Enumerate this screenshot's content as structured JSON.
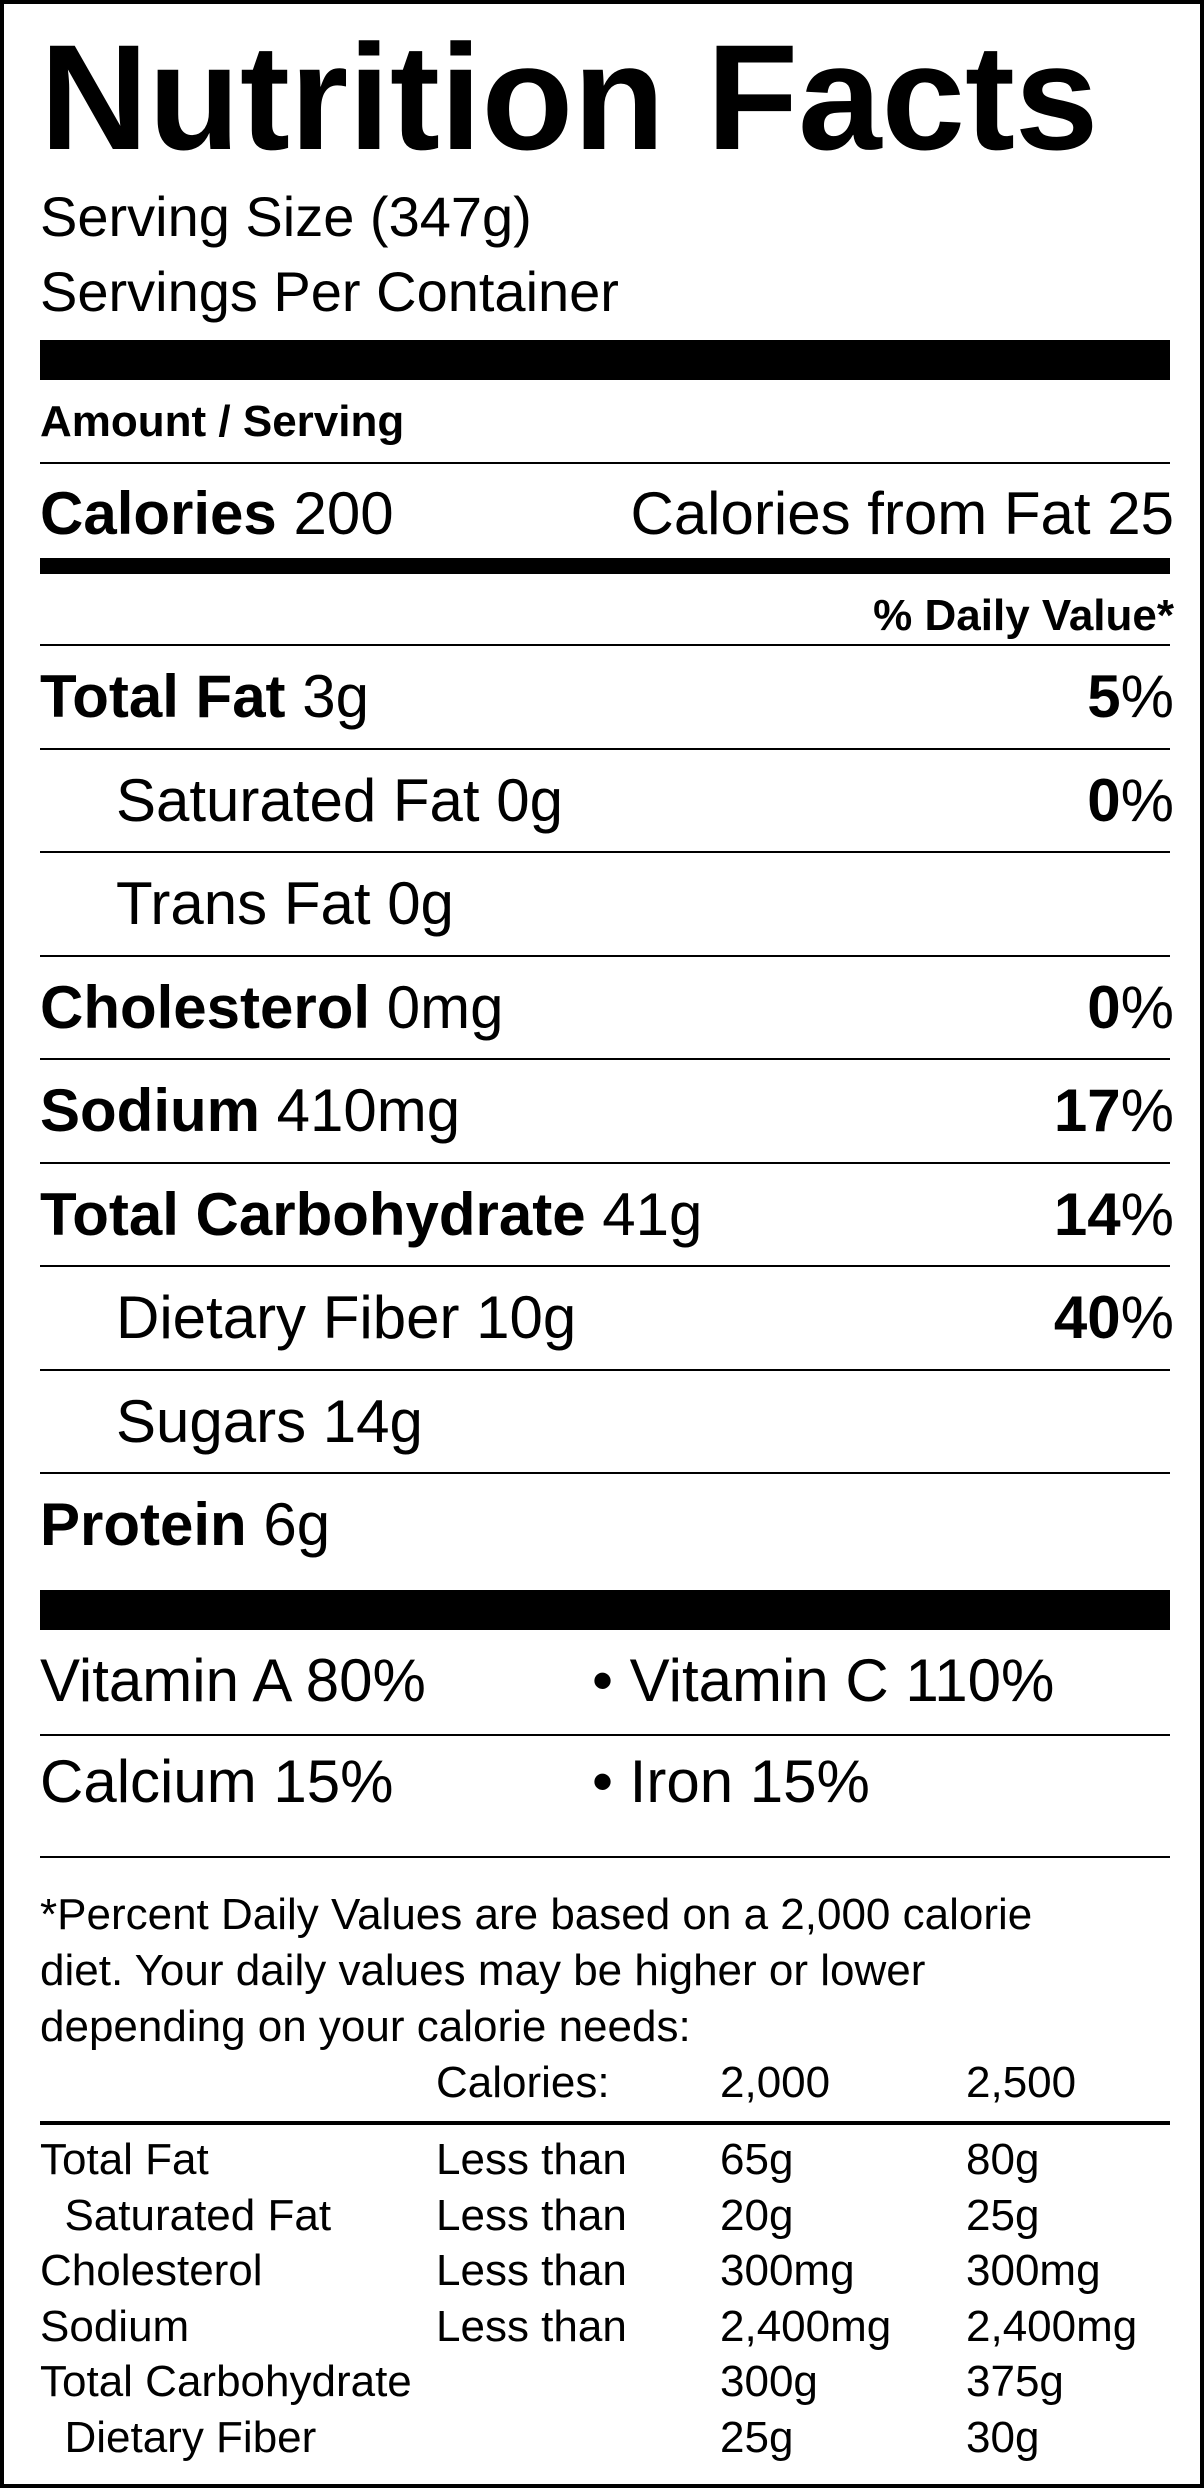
{
  "title": "Nutrition Facts",
  "serving_size": "Serving Size (347g)",
  "servings_per_container": "Servings Per Container",
  "amount_per_serving": "Amount / Serving",
  "calories": {
    "label": "Calories",
    "value": "200"
  },
  "calories_from_fat": "Calories from Fat 25",
  "daily_value_header": "% Daily Value*",
  "nutrients": [
    {
      "name": "Total Fat",
      "amount": "3g",
      "dv": "5%",
      "bold": true,
      "indent": false
    },
    {
      "name": "Saturated Fat",
      "amount": "0g",
      "dv": "0%",
      "bold": false,
      "indent": true
    },
    {
      "name": "Trans Fat",
      "amount": "0g",
      "dv": "",
      "bold": false,
      "indent": true
    },
    {
      "name": "Cholesterol",
      "amount": "0mg",
      "dv": "0%",
      "bold": true,
      "indent": false
    },
    {
      "name": "Sodium",
      "amount": "410mg",
      "dv": "17%",
      "bold": true,
      "indent": false
    },
    {
      "name": "Total Carbohydrate",
      "amount": "41g",
      "dv": "14%",
      "bold": true,
      "indent": false
    },
    {
      "name": "Dietary Fiber",
      "amount": "10g",
      "dv": "40%",
      "bold": false,
      "indent": true
    },
    {
      "name": "Sugars",
      "amount": "14g",
      "dv": "",
      "bold": false,
      "indent": true
    },
    {
      "name": "Protein",
      "amount": "6g",
      "dv": "",
      "bold": true,
      "indent": false
    }
  ],
  "vitamins": {
    "vitamin_a": "Vitamin A 80%",
    "vitamin_c": "• Vitamin C 110%",
    "calcium": "Calcium 15%",
    "iron": "• Iron 15%"
  },
  "footnote": {
    "line1": "*Percent Daily Values are based on a 2,000 calorie",
    "line2": "diet. Your daily values may be higher or lower",
    "line3": "depending on your calorie needs:",
    "calories_label": "Calories:",
    "cal_2000": "2,000",
    "cal_2500": "2,500",
    "rows": [
      {
        "name": "Total Fat",
        "qual": "Less than",
        "v2000": "65g",
        "v2500": "80g"
      },
      {
        "name": "  Saturated Fat",
        "qual": "Less than",
        "v2000": "20g",
        "v2500": "25g"
      },
      {
        "name": "Cholesterol",
        "qual": "Less than",
        "v2000": "300mg",
        "v2500": "300mg"
      },
      {
        "name": "Sodium",
        "qual": "Less than",
        "v2000": "2,400mg",
        "v2500": "2,400mg"
      },
      {
        "name": "Total Carbohydrate",
        "qual": "",
        "v2000": "300g",
        "v2500": "375g"
      },
      {
        "name": "  Dietary Fiber",
        "qual": "",
        "v2000": "25g",
        "v2500": "30g"
      }
    ]
  }
}
